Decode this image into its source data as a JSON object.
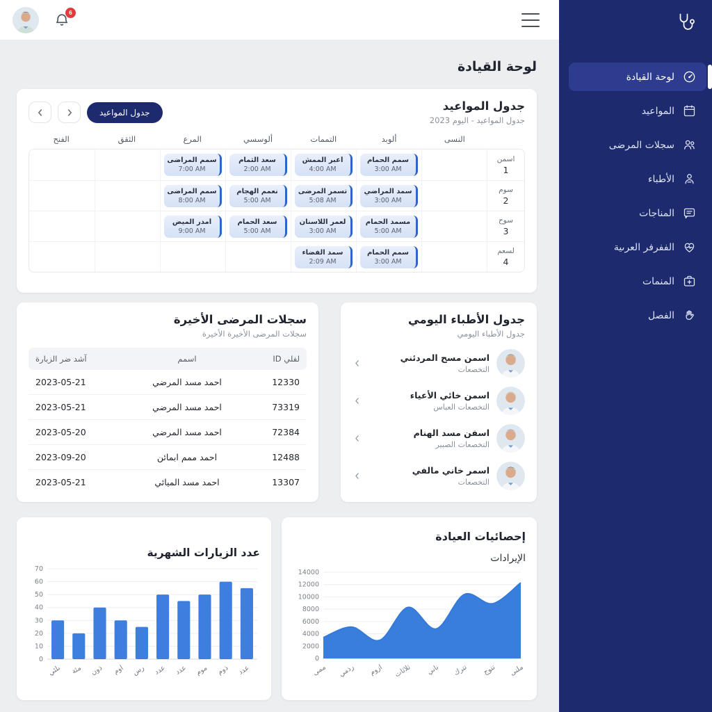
{
  "page": {
    "title": "لوحة القيادة"
  },
  "header": {
    "notification_count": "6"
  },
  "sidebar": {
    "logo_icon": "stethoscope-icon",
    "items": [
      {
        "label": "لوحة القيادة",
        "icon": "gauge-icon",
        "active": true
      },
      {
        "label": "المواعيد",
        "icon": "calendar-icon",
        "active": false
      },
      {
        "label": "سجلات المرضى",
        "icon": "patients-icon",
        "active": false
      },
      {
        "label": "الأطباء",
        "icon": "doctor-icon",
        "active": false
      },
      {
        "label": "المناجات",
        "icon": "messages-icon",
        "active": false
      },
      {
        "label": "الففرفر العرىية",
        "icon": "heart-pulse-icon",
        "active": false
      },
      {
        "label": "المنمات",
        "icon": "first-aid-icon",
        "active": false
      },
      {
        "label": "الفصل",
        "icon": "hand-icon",
        "active": false
      }
    ]
  },
  "appointments": {
    "title": "جدول المواعيد",
    "subtitle": "جدول المواعيد - اليوم 2023",
    "button_label": "جدول المواعيد",
    "columns": [
      "النسى",
      "ألوبد",
      "التممات",
      "ألوسسي",
      "المرع",
      "الثقق",
      "الفنح"
    ],
    "rows": [
      {
        "label": "اسمن",
        "num": "1",
        "chips": [
          {
            "col": 1,
            "name": "سمم الحمام",
            "time": "3:00 AM"
          },
          {
            "col": 2,
            "name": "أعبر الممش",
            "time": "4:00 AM"
          },
          {
            "col": 3,
            "name": "سعد الثمام",
            "time": "2:00 AM"
          },
          {
            "col": 4,
            "name": "سمم المراضى",
            "time": "7:00 AM"
          }
        ]
      },
      {
        "label": "سوم",
        "num": "2",
        "chips": [
          {
            "col": 1,
            "name": "سمد المراضي",
            "time": "3:00 AM"
          },
          {
            "col": 2,
            "name": "تسمر المرضى",
            "time": "5:08 AM"
          },
          {
            "col": 3,
            "name": "نعمم الهجام",
            "time": "5:00 AM"
          },
          {
            "col": 4,
            "name": "سمم المراضى",
            "time": "8:00 AM"
          }
        ]
      },
      {
        "label": "سوح",
        "num": "3",
        "chips": [
          {
            "col": 1,
            "name": "مسمد الحمام",
            "time": "5:00 AM"
          },
          {
            "col": 2,
            "name": "لعمر اللاسنان",
            "time": "3:00 AM"
          },
          {
            "col": 3,
            "name": "سعد الحمام",
            "time": "5:00 AM"
          },
          {
            "col": 4,
            "name": "أمدر الميض",
            "time": "9:00 AM"
          }
        ]
      },
      {
        "label": "لسعم",
        "num": "4",
        "chips": [
          {
            "col": 1,
            "name": "سمم الحمام",
            "time": "3:00 AM"
          },
          {
            "col": 2,
            "name": "سمد الفضاء",
            "time": "2:09 AM"
          }
        ]
      }
    ]
  },
  "patients": {
    "title": "سجلات المرضى الأخيرة",
    "subtitle": "سجلات المرضى الأخيرة الأخيرة",
    "columns": [
      "لفلي ID",
      "اسمم",
      "آشد ضر الزبارة"
    ],
    "rows": [
      [
        "12330",
        "احمد مسد المرضي",
        "2023-05-21"
      ],
      [
        "73319",
        "احمد مسد المرضي",
        "2023-05-21"
      ],
      [
        "72384",
        "احمد مسد المرضي",
        "2023-05-20"
      ],
      [
        "12488",
        "احمد ممم ابمائن",
        "2023-09-20"
      ],
      [
        "13307",
        "احمد مسد الميائي",
        "2023-05-21"
      ]
    ]
  },
  "doctors": {
    "title": "جدول الأطباء اليومي",
    "subtitle": "جدول الأطباء اليومي",
    "items": [
      {
        "name": "اسمن مسح المردئني",
        "specialty": "التخصعات"
      },
      {
        "name": "اسمن خائي الأعياء",
        "specialty": "التخصعات العباس"
      },
      {
        "name": "اسفن مسد الهنام",
        "specialty": "التخصعات الصبير"
      },
      {
        "name": "اسمر خاني مالفي",
        "specialty": "التخصعات"
      }
    ]
  },
  "stats_card": {
    "title": "إحصائيات العيادة"
  },
  "chart_data": [
    {
      "type": "bar",
      "title": "عدد الزيارات الشهرية",
      "categories": [
        "ىلئي",
        "مئة",
        "ذون",
        "اوم",
        "رس",
        "عدد",
        "عدد",
        "موم",
        "ذوم",
        "عدد"
      ],
      "values": [
        30,
        20,
        40,
        30,
        25,
        50,
        45,
        50,
        60,
        55
      ],
      "xlabel": "",
      "ylabel": "",
      "ylim": [
        0,
        70
      ],
      "ytick_step": 10,
      "grid": true,
      "legend": false,
      "color": "#3d7edf"
    },
    {
      "type": "area",
      "title": "الإيرادات",
      "categories": [
        "ممى",
        "رذمي",
        "ازوم",
        "ثلاثات",
        "ناني",
        "تترك",
        "تنوج",
        "ملنى"
      ],
      "values": [
        3400,
        5100,
        2950,
        8300,
        4800,
        10400,
        8900,
        12300
      ],
      "xlabel": "",
      "ylabel": "",
      "ylim": [
        0,
        14000
      ],
      "ytick_step": 2000,
      "grid": true,
      "legend": false,
      "color": "#337ad9"
    }
  ],
  "colors": {
    "sidebar": "#1d2a6e",
    "sidebar_active": "#2d3c8e",
    "accent": "#1d2a6e",
    "chip_bar": "#2d66c8",
    "bar_fill": "#3d7edf",
    "area_fill": "#337ad9",
    "badge": "#e23b3b"
  }
}
